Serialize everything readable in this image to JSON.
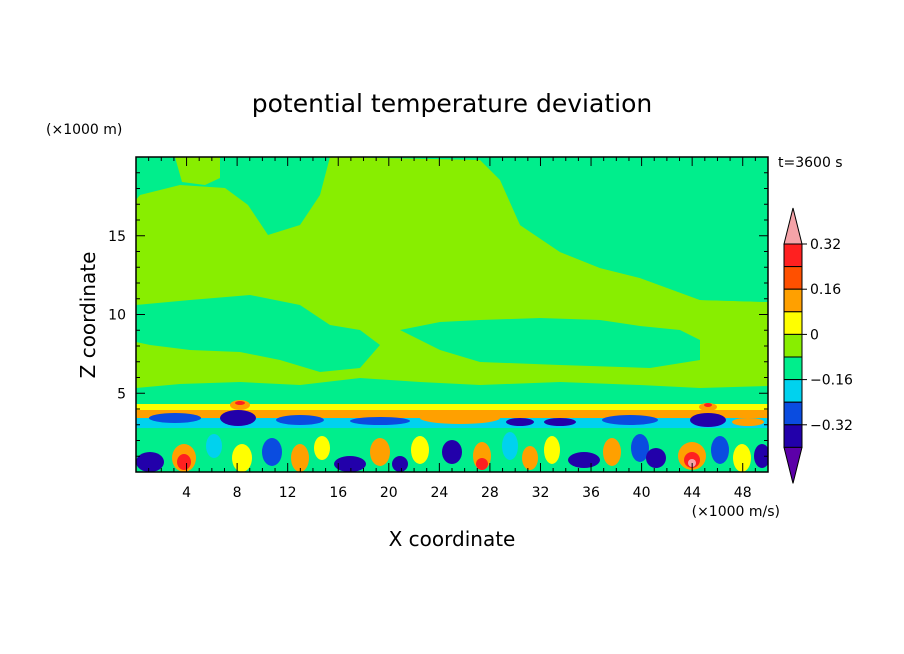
{
  "chart_data": {
    "type": "heatmap",
    "title": "potential temperature deviation",
    "xlabel": "X coordinate",
    "ylabel": "Z coordinate",
    "x_unit": "(×1000 m/s)",
    "y_unit": "(×1000 m)",
    "time_label": "t=3600 s",
    "xlim": [
      0,
      50
    ],
    "ylim": [
      0,
      20
    ],
    "x_ticks": [
      4,
      8,
      12,
      16,
      20,
      24,
      28,
      32,
      36,
      40,
      44,
      48
    ],
    "y_ticks": [
      5,
      10,
      15
    ],
    "colorbar": {
      "levels": [
        -0.4,
        -0.32,
        -0.24,
        -0.16,
        -0.08,
        0,
        0.08,
        0.16,
        0.24,
        0.32,
        0.4
      ],
      "labels": [
        "0.32",
        "0.16",
        "0",
        "−0.16",
        "−0.32"
      ],
      "label_values": [
        0.32,
        0.16,
        0,
        -0.16,
        -0.32
      ],
      "colors": [
        "#5c00a8",
        "#2200aa",
        "#0a4ce0",
        "#00d2ee",
        "#00ee8c",
        "#88ee00",
        "#ffff00",
        "#ffa000",
        "#ff5000",
        "#ff2020",
        "#f5a3a8"
      ]
    }
  }
}
